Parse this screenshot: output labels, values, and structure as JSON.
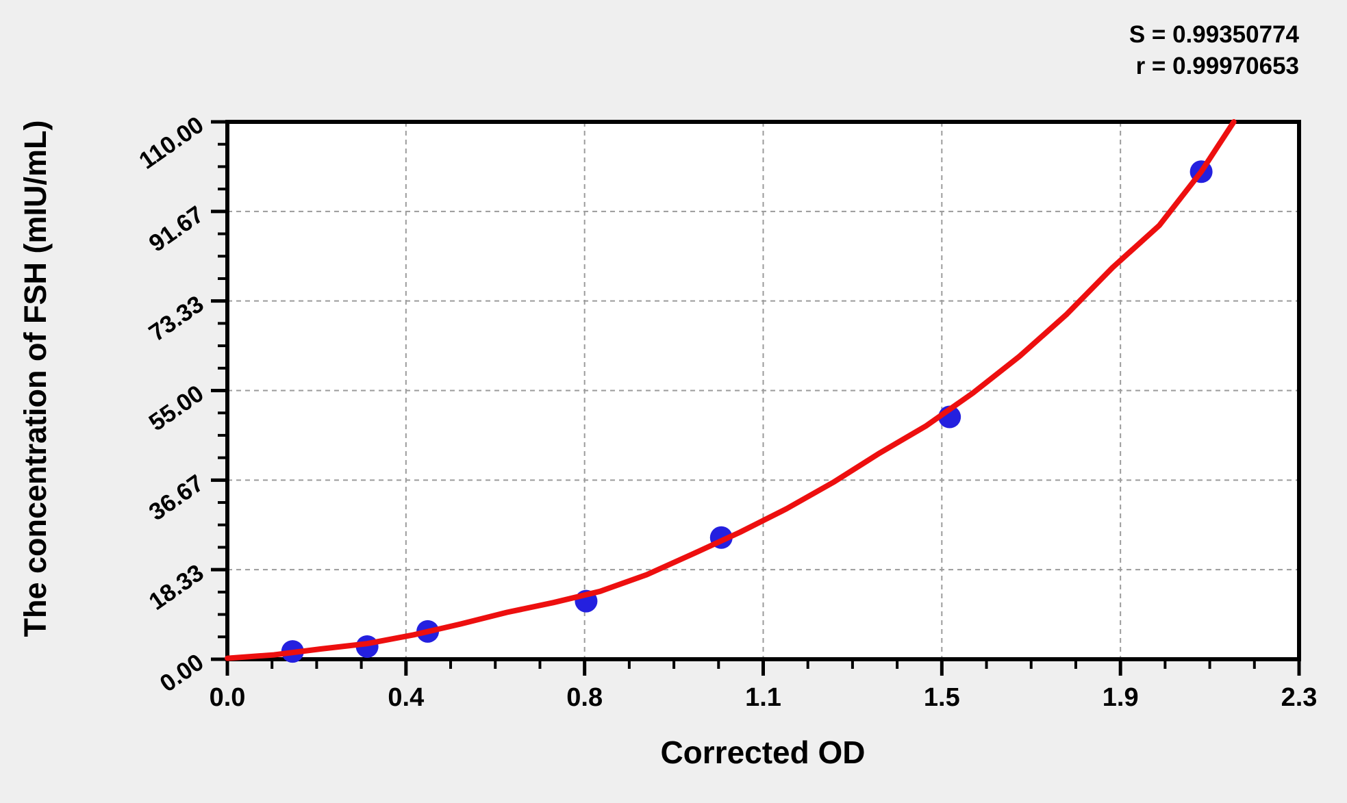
{
  "stats": {
    "s_line": "S = 0.99350774",
    "r_line": "r = 0.99970653"
  },
  "chart_data": {
    "type": "scatter",
    "title": "",
    "xlabel": "Corrected OD",
    "ylabel": "The concentration of FSH (mIU/mL)",
    "xlim": [
      0,
      2.3
    ],
    "ylim": [
      0,
      110
    ],
    "x_tick_labels": [
      "0.0",
      "0.4",
      "0.8",
      "1.1",
      "1.5",
      "1.9",
      "2.3"
    ],
    "y_tick_labels": [
      "0.00",
      "18.33",
      "36.67",
      "55.00",
      "73.33",
      "91.67",
      "110.00"
    ],
    "minor_divisions_per_major": 4,
    "grid": "dashed-at-major-ticks",
    "legend": "none",
    "stats": {
      "S": "0.99350774",
      "r": "0.99970653"
    },
    "series": [
      {
        "name": "standard-points",
        "type": "scatter",
        "color": "#2420df",
        "points": [
          [
            0.14,
            1.6
          ],
          [
            0.3,
            2.6
          ],
          [
            0.43,
            5.7
          ],
          [
            0.77,
            11.9
          ],
          [
            1.06,
            24.9
          ],
          [
            1.55,
            49.6
          ],
          [
            2.09,
            99.8
          ]
        ]
      },
      {
        "name": "fitted-curve",
        "type": "line",
        "color": "#ed0f0f",
        "points": [
          [
            0.0,
            0.2
          ],
          [
            0.1,
            0.9
          ],
          [
            0.2,
            2.1
          ],
          [
            0.3,
            3.2
          ],
          [
            0.4,
            5.0
          ],
          [
            0.5,
            7.2
          ],
          [
            0.6,
            9.6
          ],
          [
            0.7,
            11.6
          ],
          [
            0.8,
            13.9
          ],
          [
            0.9,
            17.3
          ],
          [
            1.0,
            21.6
          ],
          [
            1.1,
            26.0
          ],
          [
            1.2,
            30.8
          ],
          [
            1.3,
            36.2
          ],
          [
            1.4,
            42.2
          ],
          [
            1.5,
            47.8
          ],
          [
            1.6,
            54.5
          ],
          [
            1.7,
            62.0
          ],
          [
            1.8,
            70.5
          ],
          [
            1.9,
            80.2
          ],
          [
            2.0,
            88.8
          ],
          [
            2.09,
            99.8
          ],
          [
            2.16,
            110.0
          ]
        ]
      }
    ]
  },
  "colors": {
    "background": "#efefef",
    "plot_background": "#ffffff",
    "axis": "#000000",
    "grid": "#9b9b9b",
    "point": "#2420df",
    "curve": "#ed0f0f"
  }
}
